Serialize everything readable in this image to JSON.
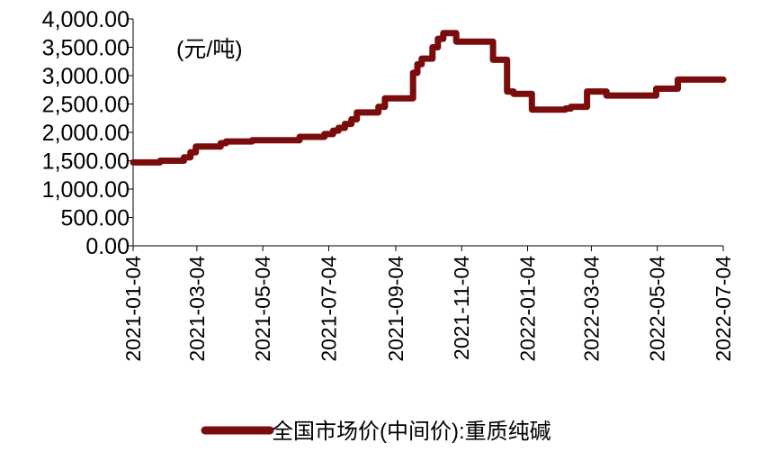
{
  "chart_data": {
    "type": "line",
    "unit_label": "(元/吨)",
    "y_ticks": [
      "0.00",
      "500.00",
      "1,000.00",
      "1,500.00",
      "2,000.00",
      "2,500.00",
      "3,000.00",
      "3,500.00",
      "4,000.00"
    ],
    "ylim": [
      0,
      4000
    ],
    "x_ticks": [
      "2021-01-04",
      "2021-03-04",
      "2021-05-04",
      "2021-07-04",
      "2021-09-04",
      "2021-11-04",
      "2022-01-04",
      "2022-03-04",
      "2022-05-04",
      "2022-07-04"
    ],
    "xlim": [
      "2021-01-04",
      "2022-07-04"
    ],
    "grid": false,
    "legend_position": "bottom",
    "series": [
      {
        "name": "全国市场价(中间价):重质纯碱",
        "color": "#7b0c0c",
        "points": [
          [
            "2021-01-04",
            1470
          ],
          [
            "2021-01-29",
            1470
          ],
          [
            "2021-01-29",
            1500
          ],
          [
            "2021-02-20",
            1500
          ],
          [
            "2021-02-20",
            1560
          ],
          [
            "2021-02-26",
            1560
          ],
          [
            "2021-02-26",
            1650
          ],
          [
            "2021-03-03",
            1650
          ],
          [
            "2021-03-03",
            1750
          ],
          [
            "2021-03-26",
            1750
          ],
          [
            "2021-03-26",
            1810
          ],
          [
            "2021-03-31",
            1810
          ],
          [
            "2021-03-31",
            1840
          ],
          [
            "2021-04-24",
            1840
          ],
          [
            "2021-04-24",
            1860
          ],
          [
            "2021-06-07",
            1860
          ],
          [
            "2021-06-07",
            1920
          ],
          [
            "2021-06-30",
            1920
          ],
          [
            "2021-06-30",
            1970
          ],
          [
            "2021-07-08",
            1970
          ],
          [
            "2021-07-08",
            2030
          ],
          [
            "2021-07-13",
            2030
          ],
          [
            "2021-07-13",
            2080
          ],
          [
            "2021-07-19",
            2080
          ],
          [
            "2021-07-19",
            2150
          ],
          [
            "2021-07-25",
            2150
          ],
          [
            "2021-07-25",
            2230
          ],
          [
            "2021-07-30",
            2230
          ],
          [
            "2021-07-30",
            2350
          ],
          [
            "2021-08-19",
            2350
          ],
          [
            "2021-08-19",
            2450
          ],
          [
            "2021-08-25",
            2450
          ],
          [
            "2021-08-25",
            2600
          ],
          [
            "2021-09-20",
            2600
          ],
          [
            "2021-09-20",
            3050
          ],
          [
            "2021-09-24",
            3050
          ],
          [
            "2021-09-24",
            3200
          ],
          [
            "2021-09-28",
            3200
          ],
          [
            "2021-09-28",
            3300
          ],
          [
            "2021-10-08",
            3300
          ],
          [
            "2021-10-08",
            3500
          ],
          [
            "2021-10-13",
            3500
          ],
          [
            "2021-10-13",
            3650
          ],
          [
            "2021-10-18",
            3650
          ],
          [
            "2021-10-18",
            3750
          ],
          [
            "2021-10-30",
            3750
          ],
          [
            "2021-10-30",
            3600
          ],
          [
            "2021-12-03",
            3600
          ],
          [
            "2021-12-03",
            3280
          ],
          [
            "2021-12-16",
            3280
          ],
          [
            "2021-12-16",
            2720
          ],
          [
            "2021-12-22",
            2720
          ],
          [
            "2021-12-22",
            2680
          ],
          [
            "2022-01-08",
            2680
          ],
          [
            "2022-01-08",
            2400
          ],
          [
            "2022-01-23",
            2400
          ],
          [
            "2022-01-23",
            2400
          ],
          [
            "2022-02-08",
            2400
          ],
          [
            "2022-02-08",
            2420
          ],
          [
            "2022-02-13",
            2420
          ],
          [
            "2022-02-13",
            2450
          ],
          [
            "2022-02-28",
            2450
          ],
          [
            "2022-02-28",
            2720
          ],
          [
            "2022-03-18",
            2720
          ],
          [
            "2022-03-18",
            2650
          ],
          [
            "2022-04-24",
            2650
          ],
          [
            "2022-04-24",
            2650
          ],
          [
            "2022-05-03",
            2650
          ],
          [
            "2022-05-03",
            2770
          ],
          [
            "2022-05-23",
            2770
          ],
          [
            "2022-05-23",
            2930
          ],
          [
            "2022-07-04",
            2930
          ]
        ]
      }
    ]
  }
}
